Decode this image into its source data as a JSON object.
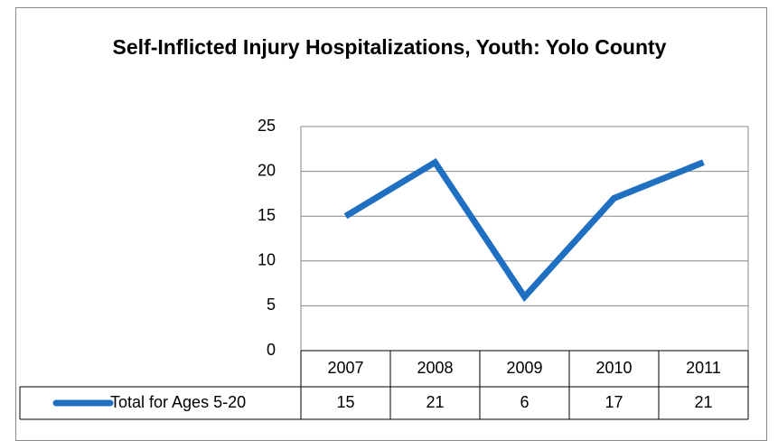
{
  "chart_data": {
    "type": "line",
    "title": "Self-Inflicted Injury Hospitalizations, Youth: Yolo County",
    "categories": [
      "2007",
      "2008",
      "2009",
      "2010",
      "2011"
    ],
    "series": [
      {
        "name": "Total for Ages 5-20",
        "color": "#1f70c1",
        "values": [
          15,
          21,
          6,
          17,
          21
        ]
      }
    ],
    "ylim": [
      0,
      25
    ],
    "yticks": [
      0,
      5,
      10,
      15,
      20,
      25
    ],
    "grid": true,
    "data_table": true
  }
}
